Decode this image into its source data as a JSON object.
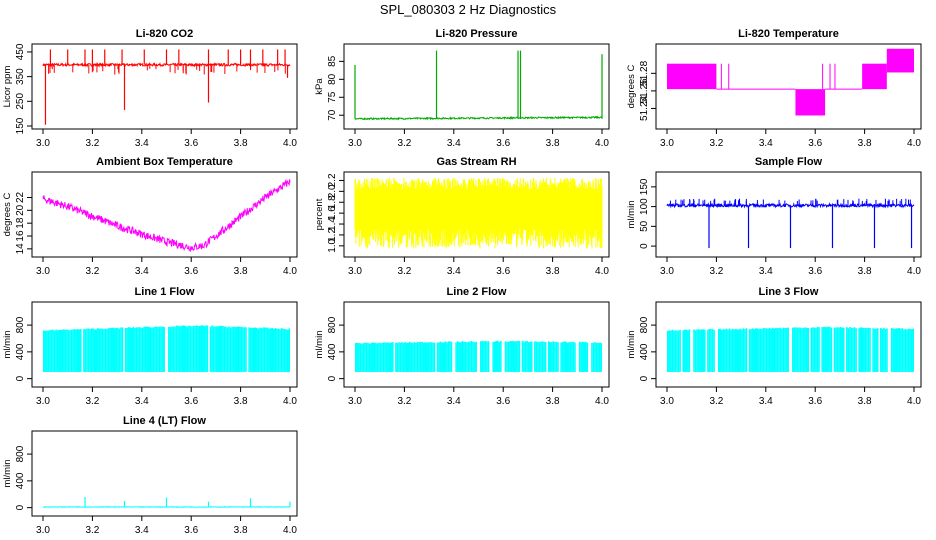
{
  "figure": {
    "title": "SPL_080303  2 Hz Diagnostics"
  },
  "chart_data": [
    {
      "type": "line",
      "title": "Li-820 CO2",
      "ylabel": "Licor ppm",
      "color": "#ff0000",
      "x_range": [
        3.0,
        4.0
      ],
      "x_ticks": [
        "3.0",
        "3.2",
        "3.4",
        "3.6",
        "3.8",
        "4.0"
      ],
      "ylim": [
        150,
        470
      ],
      "y_ticks": [
        "150",
        "250",
        "350",
        "450"
      ],
      "series": [
        {
          "name": "CO2",
          "baseline": 398,
          "noise": 5,
          "spikes_up": [
            3.03,
            3.1,
            3.17,
            3.2,
            3.25,
            3.32,
            3.41,
            3.5,
            3.55,
            3.67,
            3.75,
            3.8,
            3.84,
            3.89,
            3.95,
            3.98
          ],
          "spike_up_to": 460,
          "spikes_down": [
            [
              3.01,
              155
            ],
            [
              3.33,
              215
            ],
            [
              3.67,
              245
            ],
            [
              3.99,
              345
            ]
          ]
        }
      ]
    },
    {
      "type": "line",
      "title": "Li-820 Pressure",
      "ylabel": "kPa",
      "color": "#00aa00",
      "x_range": [
        3.0,
        4.0
      ],
      "x_ticks": [
        "3.0",
        "3.2",
        "3.4",
        "3.6",
        "3.8",
        "4.0"
      ],
      "ylim": [
        67,
        89
      ],
      "y_ticks": [
        "70",
        "75",
        "80",
        "85"
      ],
      "series": [
        {
          "name": "Pressure",
          "baseline": 69.0,
          "noise": 0.2,
          "spikes_up": [
            [
              3.0,
              84
            ],
            [
              3.33,
              88
            ],
            [
              3.66,
              88
            ],
            [
              3.67,
              88
            ],
            [
              4.0,
              87
            ]
          ]
        }
      ]
    },
    {
      "type": "line",
      "title": "Li-820 Temperature",
      "ylabel": "degrees C",
      "color": "#ff00ff",
      "x_range": [
        3.0,
        4.0
      ],
      "x_ticks": [
        "3.0",
        "3.2",
        "3.4",
        "3.6",
        "3.8",
        "4.0"
      ],
      "ylim": [
        51.22,
        51.31
      ],
      "y_ticks": [
        "51.24",
        "51.26",
        "51.28"
      ],
      "series": [
        {
          "name": "Temperature",
          "blocks": [
            [
              3.0,
              3.2,
              51.262,
              51.291
            ],
            [
              3.2,
              3.52,
              51.262,
              51.262
            ],
            [
              3.52,
              3.64,
              51.232,
              51.262
            ],
            [
              3.64,
              3.79,
              51.262,
              51.262
            ],
            [
              3.79,
              3.89,
              51.262,
              51.291
            ],
            [
              3.89,
              4.0,
              51.281,
              51.308
            ]
          ]
        }
      ]
    },
    {
      "type": "line",
      "title": "Ambient Box Temperature",
      "ylabel": "degrees C",
      "color": "#ff00ff",
      "x_range": [
        3.0,
        4.0
      ],
      "x_ticks": [
        "3.0",
        "3.2",
        "3.4",
        "3.6",
        "3.8",
        "4.0"
      ],
      "ylim": [
        13.2,
        25.5
      ],
      "y_ticks": [
        "14",
        "16",
        "18",
        "20",
        "22"
      ],
      "series": [
        {
          "name": "Box Temp",
          "points": [
            [
              3.0,
              21.8
            ],
            [
              3.1,
              20.6
            ],
            [
              3.2,
              19.1
            ],
            [
              3.3,
              17.6
            ],
            [
              3.4,
              16.3
            ],
            [
              3.5,
              15.1
            ],
            [
              3.6,
              14.2
            ],
            [
              3.65,
              14.5
            ],
            [
              3.7,
              16.0
            ],
            [
              3.8,
              19.0
            ],
            [
              3.9,
              22.0
            ],
            [
              4.0,
              24.5
            ]
          ],
          "noise": 0.6
        }
      ]
    },
    {
      "type": "line",
      "title": "Gas Stream RH",
      "ylabel": "percent",
      "color": "#ffff00",
      "x_range": [
        3.0,
        4.0
      ],
      "x_ticks": [
        "3.0",
        "3.2",
        "3.4",
        "3.6",
        "3.8",
        "4.0"
      ],
      "ylim": [
        0.85,
        2.3
      ],
      "y_ticks": [
        "1.0",
        "1.2",
        "1.4",
        "1.6",
        "1.8",
        "2.0",
        "2.2"
      ],
      "series": [
        {
          "name": "RH",
          "band": [
            1.3,
            2.05
          ],
          "outer": [
            0.95,
            2.25
          ]
        }
      ]
    },
    {
      "type": "line",
      "title": "Sample Flow",
      "ylabel": "ml/min",
      "color": "#0000ff",
      "x_range": [
        3.0,
        4.0
      ],
      "x_ticks": [
        "3.0",
        "3.2",
        "3.4",
        "3.6",
        "3.8",
        "4.0"
      ],
      "ylim": [
        -20,
        180
      ],
      "y_ticks": [
        "0",
        "50",
        "100",
        "150"
      ],
      "series": [
        {
          "name": "Sample Flow",
          "baseline": 103,
          "noise": 4,
          "spikes_up_to": 120,
          "dropouts": [
            3.17,
            3.33,
            3.5,
            3.67,
            3.84,
            3.99
          ]
        }
      ]
    },
    {
      "type": "line",
      "title": "Line 1 Flow",
      "ylabel": "ml/min",
      "color": "#00ffff",
      "x_range": [
        3.0,
        4.0
      ],
      "x_ticks": [
        "3.0",
        "3.2",
        "3.4",
        "3.6",
        "3.8",
        "4.0"
      ],
      "ylim": [
        -80,
        1100
      ],
      "y_ticks": [
        "0",
        "400",
        "800"
      ],
      "series": [
        {
          "name": "Line 1",
          "band_low": 100,
          "band_top": [
            [
              3.0,
              720
            ],
            [
              3.5,
              780
            ],
            [
              3.65,
              790
            ],
            [
              4.0,
              740
            ]
          ],
          "gaps": [
            3.16,
            3.33,
            3.5,
            3.67,
            3.83
          ]
        }
      ]
    },
    {
      "type": "line",
      "title": "Line 2 Flow",
      "ylabel": "ml/min",
      "color": "#00ffff",
      "x_range": [
        3.0,
        4.0
      ],
      "x_ticks": [
        "3.0",
        "3.2",
        "3.4",
        "3.6",
        "3.8",
        "4.0"
      ],
      "ylim": [
        -80,
        1100
      ],
      "y_ticks": [
        "0",
        "400",
        "800"
      ],
      "series": [
        {
          "name": "Line 2",
          "band_low": 100,
          "band_top": [
            [
              3.0,
              530
            ],
            [
              3.6,
              560
            ],
            [
              4.0,
              540
            ]
          ],
          "gaps": [
            3.16,
            3.33,
            3.4,
            3.5,
            3.55,
            3.6,
            3.67,
            3.72,
            3.78,
            3.83,
            3.9,
            3.95
          ]
        }
      ]
    },
    {
      "type": "line",
      "title": "Line 3 Flow",
      "ylabel": "ml/min",
      "color": "#00ffff",
      "x_range": [
        3.0,
        4.0
      ],
      "x_ticks": [
        "3.0",
        "3.2",
        "3.4",
        "3.6",
        "3.8",
        "4.0"
      ],
      "ylim": [
        -80,
        1100
      ],
      "y_ticks": [
        "0",
        "400",
        "800"
      ],
      "series": [
        {
          "name": "Line 3",
          "band_low": 100,
          "band_top": [
            [
              3.0,
              720
            ],
            [
              3.5,
              760
            ],
            [
              3.65,
              770
            ],
            [
              4.0,
              740
            ]
          ],
          "gaps": [
            3.06,
            3.1,
            3.16,
            3.2,
            3.33,
            3.5,
            3.58,
            3.62,
            3.67,
            3.72,
            3.77,
            3.83,
            3.86,
            3.9
          ]
        }
      ]
    },
    {
      "type": "line",
      "title": "Line 4 (LT) Flow",
      "ylabel": "ml/min",
      "color": "#00ffff",
      "x_range": [
        3.0,
        4.0
      ],
      "x_ticks": [
        "3.0",
        "3.2",
        "3.4",
        "3.6",
        "3.8",
        "4.0"
      ],
      "ylim": [
        -80,
        1100
      ],
      "y_ticks": [
        "0",
        "400",
        "800"
      ],
      "series": [
        {
          "name": "Line 4",
          "baseline": 10,
          "spikes": [
            [
              3.17,
              160
            ],
            [
              3.33,
              100
            ],
            [
              3.5,
              150
            ],
            [
              3.67,
              90
            ],
            [
              3.84,
              140
            ],
            [
              4.0,
              90
            ]
          ]
        }
      ]
    }
  ]
}
